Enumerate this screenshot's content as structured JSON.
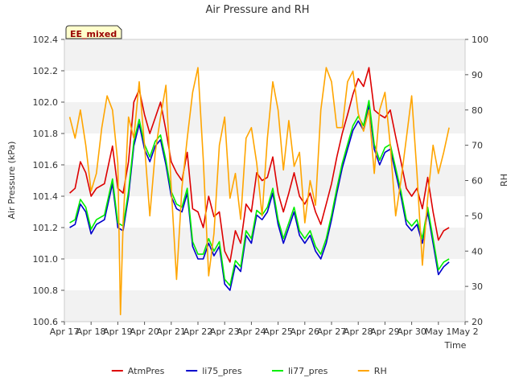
{
  "chart_data": {
    "type": "line",
    "title": "Air Pressure and RH",
    "badge": "EE_mixed",
    "xlabel": "Time",
    "ylabel": "Air Pressure (kPa)",
    "y2label": "RH",
    "x_ticks": [
      "Apr 17",
      "Apr 18",
      "Apr 19",
      "Apr 20",
      "Apr 21",
      "Apr 22",
      "Apr 23",
      "Apr 24",
      "Apr 25",
      "Apr 26",
      "Apr 27",
      "Apr 28",
      "Apr 29",
      "Apr 30",
      "May 1",
      "May 2"
    ],
    "xlim": [
      0,
      15
    ],
    "ylim": [
      100.6,
      102.4
    ],
    "y_ticks": [
      "100.6",
      "100.8",
      "101.0",
      "101.2",
      "101.4",
      "101.6",
      "101.8",
      "102.0",
      "102.2",
      "102.4"
    ],
    "y2lim": [
      20,
      100
    ],
    "y2_ticks": [
      "20",
      "30",
      "40",
      "50",
      "60",
      "70",
      "80",
      "90",
      "100"
    ],
    "grid": "horizontal bands",
    "legend_position": "bottom",
    "series": [
      {
        "name": "AtmPres",
        "axis": "left",
        "color": "#dd0000",
        "x": [
          0.2,
          0.4,
          0.6,
          0.8,
          1.0,
          1.2,
          1.5,
          1.8,
          2.0,
          2.2,
          2.4,
          2.6,
          2.8,
          3.0,
          3.2,
          3.4,
          3.6,
          3.8,
          4.0,
          4.2,
          4.4,
          4.6,
          4.8,
          5.0,
          5.2,
          5.4,
          5.6,
          5.8,
          6.0,
          6.2,
          6.4,
          6.6,
          6.8,
          7.0,
          7.2,
          7.4,
          7.6,
          7.8,
          8.0,
          8.2,
          8.4,
          8.6,
          8.8,
          9.0,
          9.2,
          9.4,
          9.6,
          9.8,
          10.0,
          10.2,
          10.4,
          10.6,
          10.8,
          11.0,
          11.2,
          11.4,
          11.6,
          11.8,
          12.0,
          12.2,
          12.4,
          12.6,
          12.8,
          13.0,
          13.2,
          13.4,
          13.6,
          13.8,
          14.0,
          14.2,
          14.4
        ],
        "y": [
          101.42,
          101.45,
          101.62,
          101.55,
          101.4,
          101.45,
          101.48,
          101.72,
          101.45,
          101.42,
          101.62,
          102.0,
          102.08,
          101.92,
          101.8,
          101.9,
          102.0,
          101.82,
          101.62,
          101.55,
          101.5,
          101.68,
          101.32,
          101.3,
          101.2,
          101.4,
          101.27,
          101.3,
          101.05,
          100.98,
          101.18,
          101.1,
          101.35,
          101.3,
          101.55,
          101.5,
          101.52,
          101.65,
          101.42,
          101.3,
          101.42,
          101.55,
          101.4,
          101.35,
          101.42,
          101.3,
          101.22,
          101.35,
          101.48,
          101.65,
          101.8,
          101.92,
          102.05,
          102.15,
          102.1,
          102.22,
          101.95,
          101.92,
          101.9,
          101.95,
          101.78,
          101.62,
          101.45,
          101.4,
          101.45,
          101.32,
          101.52,
          101.3,
          101.12,
          101.18,
          101.2
        ]
      },
      {
        "name": "li75_pres",
        "axis": "left",
        "color": "#0000cc",
        "x": [
          0.2,
          0.4,
          0.6,
          0.8,
          1.0,
          1.2,
          1.5,
          1.8,
          2.0,
          2.2,
          2.4,
          2.6,
          2.8,
          3.0,
          3.2,
          3.4,
          3.6,
          3.8,
          4.0,
          4.2,
          4.4,
          4.6,
          4.8,
          5.0,
          5.2,
          5.4,
          5.6,
          5.8,
          6.0,
          6.2,
          6.4,
          6.6,
          6.8,
          7.0,
          7.2,
          7.4,
          7.6,
          7.8,
          8.0,
          8.2,
          8.4,
          8.6,
          8.8,
          9.0,
          9.2,
          9.4,
          9.6,
          9.8,
          10.0,
          10.2,
          10.4,
          10.6,
          10.8,
          11.0,
          11.2,
          11.4,
          11.6,
          11.8,
          12.0,
          12.2,
          12.4,
          12.6,
          12.8,
          13.0,
          13.2,
          13.4,
          13.6,
          13.8,
          14.0,
          14.2,
          14.4
        ],
        "y": [
          101.2,
          101.22,
          101.35,
          101.3,
          101.16,
          101.22,
          101.25,
          101.48,
          101.2,
          101.18,
          101.4,
          101.72,
          101.86,
          101.7,
          101.62,
          101.72,
          101.76,
          101.6,
          101.4,
          101.32,
          101.3,
          101.42,
          101.08,
          101.0,
          101.0,
          101.1,
          101.02,
          101.08,
          100.84,
          100.8,
          100.96,
          100.92,
          101.15,
          101.1,
          101.28,
          101.25,
          101.3,
          101.42,
          101.22,
          101.1,
          101.2,
          101.3,
          101.15,
          101.1,
          101.15,
          101.05,
          101.0,
          101.1,
          101.25,
          101.42,
          101.58,
          101.7,
          101.82,
          101.88,
          101.82,
          101.98,
          101.7,
          101.6,
          101.68,
          101.7,
          101.55,
          101.4,
          101.22,
          101.18,
          101.22,
          101.1,
          101.3,
          101.1,
          100.9,
          100.95,
          100.98
        ]
      },
      {
        "name": "li77_pres",
        "axis": "left",
        "color": "#00ee00",
        "x": [
          0.2,
          0.4,
          0.6,
          0.8,
          1.0,
          1.2,
          1.5,
          1.8,
          2.0,
          2.2,
          2.4,
          2.6,
          2.8,
          3.0,
          3.2,
          3.4,
          3.6,
          3.8,
          4.0,
          4.2,
          4.4,
          4.6,
          4.8,
          5.0,
          5.2,
          5.4,
          5.6,
          5.8,
          6.0,
          6.2,
          6.4,
          6.6,
          6.8,
          7.0,
          7.2,
          7.4,
          7.6,
          7.8,
          8.0,
          8.2,
          8.4,
          8.6,
          8.8,
          9.0,
          9.2,
          9.4,
          9.6,
          9.8,
          10.0,
          10.2,
          10.4,
          10.6,
          10.8,
          11.0,
          11.2,
          11.4,
          11.6,
          11.8,
          12.0,
          12.2,
          12.4,
          12.6,
          12.8,
          13.0,
          13.2,
          13.4,
          13.6,
          13.8,
          14.0,
          14.2,
          14.4
        ],
        "y": [
          101.23,
          101.25,
          101.38,
          101.33,
          101.19,
          101.25,
          101.28,
          101.51,
          101.23,
          101.21,
          101.43,
          101.75,
          101.89,
          101.73,
          101.65,
          101.75,
          101.79,
          101.63,
          101.43,
          101.35,
          101.33,
          101.45,
          101.11,
          101.03,
          101.03,
          101.13,
          101.05,
          101.11,
          100.87,
          100.83,
          100.99,
          100.95,
          101.18,
          101.13,
          101.31,
          101.28,
          101.33,
          101.45,
          101.25,
          101.13,
          101.23,
          101.33,
          101.18,
          101.13,
          101.18,
          101.08,
          101.03,
          101.13,
          101.28,
          101.45,
          101.61,
          101.73,
          101.85,
          101.91,
          101.85,
          102.01,
          101.73,
          101.63,
          101.71,
          101.73,
          101.58,
          101.43,
          101.25,
          101.21,
          101.25,
          101.13,
          101.33,
          101.13,
          100.93,
          100.98,
          101.0
        ]
      },
      {
        "name": "RH",
        "axis": "right",
        "color": "#ffa500",
        "x": [
          0.2,
          0.4,
          0.6,
          0.8,
          1.0,
          1.2,
          1.4,
          1.6,
          1.8,
          2.0,
          2.1,
          2.2,
          2.4,
          2.6,
          2.8,
          3.0,
          3.2,
          3.4,
          3.6,
          3.8,
          4.0,
          4.2,
          4.4,
          4.6,
          4.8,
          5.0,
          5.2,
          5.4,
          5.6,
          5.8,
          6.0,
          6.2,
          6.4,
          6.6,
          6.8,
          7.0,
          7.2,
          7.4,
          7.6,
          7.8,
          8.0,
          8.2,
          8.4,
          8.6,
          8.8,
          9.0,
          9.2,
          9.4,
          9.6,
          9.8,
          10.0,
          10.2,
          10.4,
          10.6,
          10.8,
          11.0,
          11.2,
          11.4,
          11.6,
          11.8,
          12.0,
          12.2,
          12.4,
          12.6,
          12.8,
          13.0,
          13.2,
          13.4,
          13.6,
          13.8,
          14.0,
          14.2,
          14.4
        ],
        "y": [
          78,
          72,
          80,
          70,
          57,
          62,
          75,
          84,
          80,
          65,
          22,
          48,
          78,
          72,
          88,
          70,
          50,
          68,
          78,
          87,
          58,
          32,
          58,
          72,
          85,
          92,
          66,
          33,
          45,
          70,
          78,
          55,
          62,
          49,
          72,
          75,
          65,
          50,
          72,
          88,
          80,
          63,
          77,
          64,
          68,
          48,
          60,
          53,
          80,
          92,
          88,
          75,
          75,
          88,
          91,
          79,
          74,
          80,
          62,
          80,
          85,
          70,
          50,
          60,
          72,
          84,
          62,
          36,
          55,
          70,
          62,
          68,
          75
        ]
      }
    ]
  }
}
